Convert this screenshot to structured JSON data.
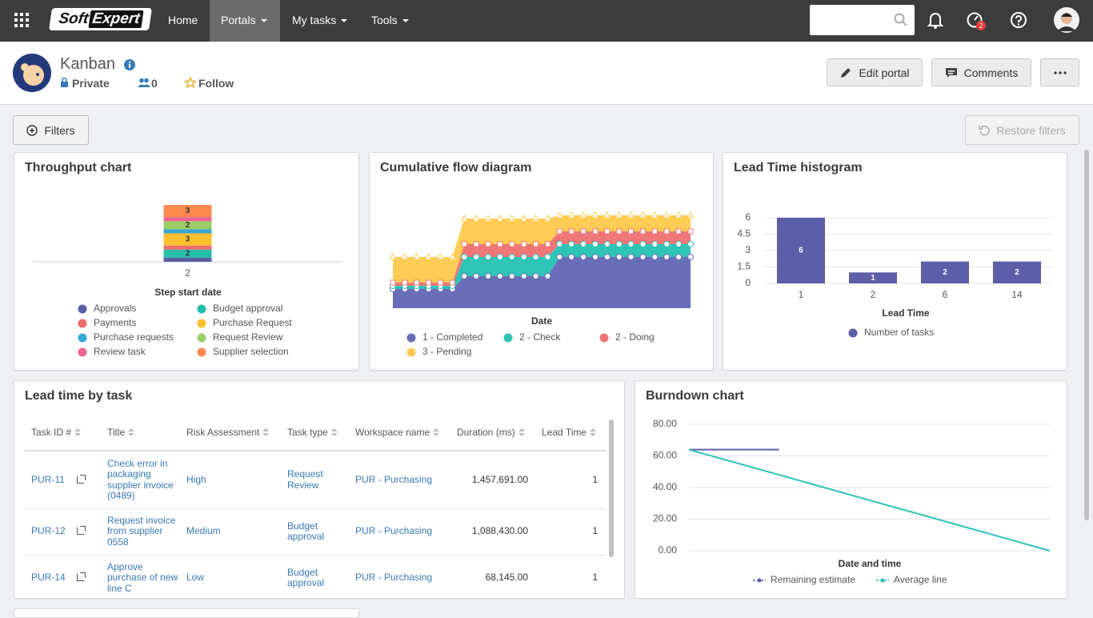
{
  "navbar": {
    "logo": {
      "left": "Soft",
      "right": "Expert"
    },
    "items": [
      "Home",
      "Portals",
      "My tasks",
      "Tools"
    ],
    "notification_count": 2
  },
  "header": {
    "title": "Kanban",
    "privacy": "Private",
    "members": 0,
    "follow": "Follow",
    "buttons": [
      "Edit portal",
      "Comments"
    ]
  },
  "toolbar": {
    "filters": "Filters",
    "restore": "Restore filters"
  },
  "chart_data": [
    {
      "type": "bar",
      "stacked": true,
      "title": "Throughput chart",
      "x_label": "Step start date",
      "categories": [
        "2"
      ],
      "series": [
        {
          "name": "Approvals",
          "color": "#5b5ea6",
          "values": [
            1
          ]
        },
        {
          "name": "Budget approval",
          "color": "#26bfad",
          "values": [
            2
          ]
        },
        {
          "name": "Payments",
          "color": "#ed6b6b",
          "values": [
            1
          ]
        },
        {
          "name": "Purchase Request",
          "color": "#fbc02d",
          "values": [
            3
          ]
        },
        {
          "name": "Purchase requests",
          "color": "#3aa6d9",
          "values": [
            1
          ]
        },
        {
          "name": "Request Review",
          "color": "#9ccc65",
          "values": [
            2
          ]
        },
        {
          "name": "Review task",
          "color": "#f06292",
          "values": [
            1
          ]
        },
        {
          "name": "Supplier selection",
          "color": "#ff8a50",
          "values": [
            3
          ]
        }
      ]
    },
    {
      "type": "area",
      "stacked": true,
      "title": "Cumulative flow diagram",
      "x_label": "Date",
      "categories": [
        null,
        null,
        null,
        null,
        null,
        null,
        null,
        null,
        null,
        null,
        null,
        null,
        null,
        null,
        null,
        null,
        null,
        null,
        null,
        null,
        null,
        null,
        null,
        null,
        null,
        null
      ],
      "series": [
        {
          "name": "1 - Completed",
          "color": "#6a6db7",
          "marker": "circle",
          "values": [
            6,
            6,
            6,
            6,
            6,
            6,
            10,
            10,
            10,
            10,
            10,
            10,
            10,
            10,
            16,
            16,
            16,
            16,
            16,
            16,
            16,
            16,
            16,
            16,
            16,
            16
          ]
        },
        {
          "name": "2 - Check",
          "color": "#2ec4b6",
          "marker": "circle",
          "values": [
            1,
            1,
            1,
            1,
            1,
            1,
            6,
            6,
            6,
            6,
            6,
            6,
            6,
            6,
            4,
            4,
            4,
            4,
            4,
            4,
            4,
            4,
            4,
            4,
            4,
            4
          ]
        },
        {
          "name": "2 - Doing",
          "color": "#ef7777",
          "marker": "square",
          "values": [
            1,
            1,
            1,
            1,
            1,
            1,
            4,
            4,
            4,
            4,
            4,
            4,
            4,
            4,
            4,
            4,
            4,
            4,
            4,
            4,
            4,
            4,
            4,
            4,
            4,
            4
          ]
        },
        {
          "name": "3 - Pending",
          "color": "#ffcc55",
          "marker": "triangle",
          "values": [
            8,
            8,
            8,
            8,
            8,
            8,
            8,
            8,
            8,
            8,
            8,
            8,
            8,
            8,
            5,
            5,
            5,
            5,
            5,
            5,
            5,
            5,
            5,
            5,
            5,
            5
          ]
        }
      ]
    },
    {
      "type": "bar",
      "title": "Lead Time histogram",
      "x_label": "Lead Time",
      "categories": [
        "1",
        "2",
        "6",
        "14"
      ],
      "series": [
        {
          "name": "Number of tasks",
          "color": "#5c5ea8",
          "values": [
            6,
            1,
            2,
            2
          ]
        }
      ],
      "ylim": [
        0,
        6
      ],
      "yticks": [
        0,
        1.5,
        3,
        4.5,
        6
      ],
      "grid": true
    },
    {
      "type": "line",
      "title": "Burndown chart",
      "x_label": "Date and time",
      "categories": [
        null,
        null,
        null,
        null,
        null
      ],
      "series": [
        {
          "name": "Remaining estimate",
          "color": "#5c5ea8",
          "values": [
            64,
            64,
            null,
            null,
            null
          ]
        },
        {
          "name": "Average line",
          "color": "#2ec4b6",
          "values": [
            64,
            48,
            32,
            16,
            0
          ]
        }
      ],
      "ylim": [
        0,
        80
      ],
      "yticks": [
        {
          "value": 0,
          "label": "0.00"
        },
        {
          "value": 20,
          "label": "20.00"
        },
        {
          "value": 40,
          "label": "40.00"
        },
        {
          "value": 60,
          "label": "60.00"
        },
        {
          "value": 80,
          "label": "80.00"
        }
      ],
      "grid": true
    }
  ],
  "table": {
    "title": "Lead time by task",
    "columns": [
      "Task ID #",
      "Title",
      "Risk Assessment",
      "Task type",
      "Workspace name",
      "Duration (ms)",
      "Lead Time"
    ],
    "rows": [
      [
        "PUR-11",
        "Check error in packaging supplier invoice (0489)",
        "High",
        "Request Review",
        "PUR - Purchasing",
        "1,457,691.00",
        1
      ],
      [
        "PUR-12",
        "Request invoice from supplier 0558",
        "Medium",
        "Budget approval",
        "PUR - Purchasing",
        "1,088,430.00",
        1
      ],
      [
        "PUR-14",
        "Approve purchase of new line C",
        "Low",
        "Budget approval",
        "PUR - Purchasing",
        "68,145.00",
        1
      ]
    ]
  }
}
